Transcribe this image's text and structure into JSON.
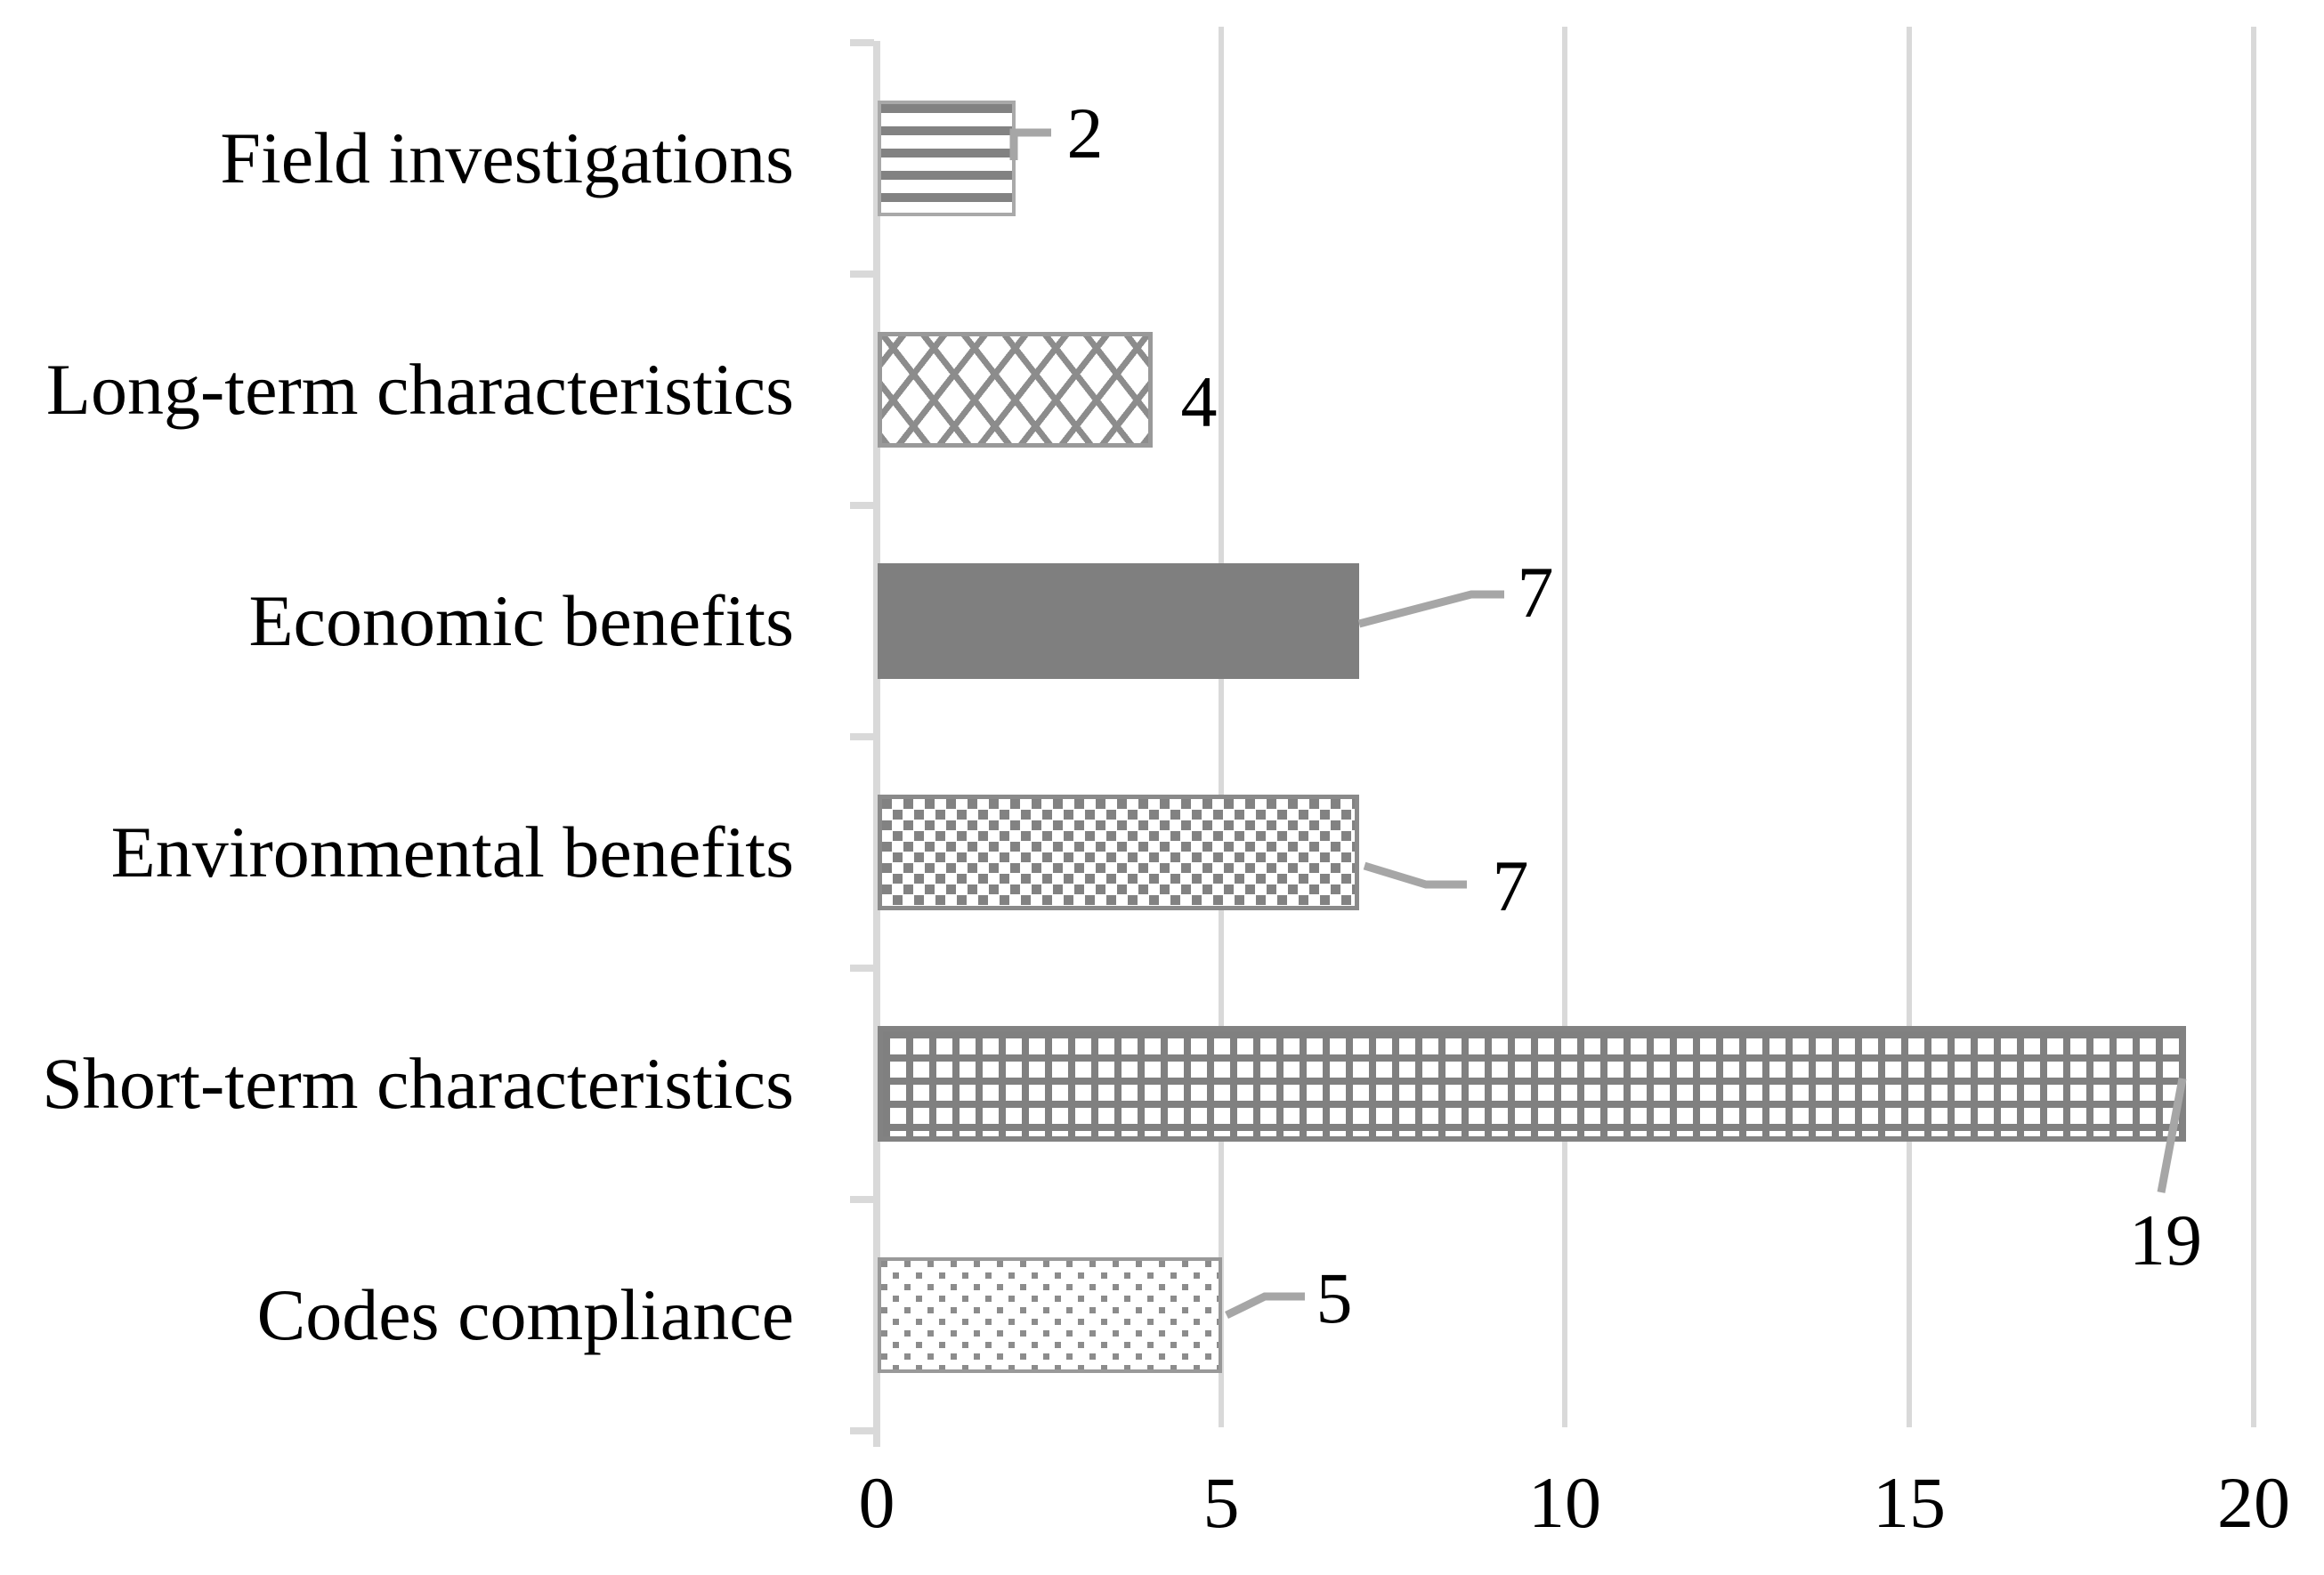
{
  "chart_data": {
    "type": "bar",
    "orientation": "horizontal",
    "categories": [
      "Field investigations",
      "Long-term characteristics",
      "Economic benefits",
      "Environmental benefits",
      "Short-term characteristics",
      "Codes compliance"
    ],
    "values": [
      2,
      4,
      7,
      7,
      19,
      5
    ],
    "patterns": [
      "hstripes",
      "lattice",
      "solid",
      "checker",
      "grid",
      "dots"
    ],
    "title": "",
    "xlabel": "",
    "ylabel": "",
    "xlim": [
      0,
      20
    ],
    "x_ticks": [
      "0",
      "5",
      "10",
      "15",
      "20"
    ],
    "grid": "vertical-gridlines-on",
    "legend": "none",
    "data_labels": [
      "2",
      "4",
      "7",
      "7",
      "19",
      "5"
    ],
    "leader_lines": "gray elbow leaders connect bars to the labels for 2, 7, 7, 19 and 5"
  },
  "colors": {
    "bar_gray": "#7f7f7f",
    "pattern_gray": "#828282",
    "outline_gray": "#999999",
    "axis_gray": "#d9d9d9",
    "leader_gray": "#a6a6a6",
    "text": "#000000",
    "background": "#ffffff"
  }
}
